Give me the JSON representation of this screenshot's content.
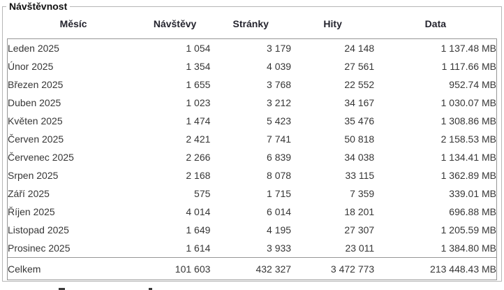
{
  "section": {
    "title": "Návštěvnost"
  },
  "chart_data": {
    "type": "table",
    "title": "Návštěvnost",
    "columns": [
      "Měsíc",
      "Návštěvy",
      "Stránky",
      "Hity",
      "Data"
    ],
    "rows": [
      [
        "Leden 2025",
        "1 054",
        "3 179",
        "24 148",
        "1 137.48 MB"
      ],
      [
        "Únor 2025",
        "1 354",
        "4 039",
        "27 561",
        "1 117.66 MB"
      ],
      [
        "Březen 2025",
        "1 655",
        "3 768",
        "22 552",
        "952.74 MB"
      ],
      [
        "Duben 2025",
        "1 023",
        "3 212",
        "34 167",
        "1 030.07 MB"
      ],
      [
        "Květen 2025",
        "1 474",
        "5 423",
        "35 476",
        "1 308.86 MB"
      ],
      [
        "Červen 2025",
        "2 421",
        "7 741",
        "50 818",
        "2 158.53 MB"
      ],
      [
        "Červenec 2025",
        "2 266",
        "6 839",
        "34 038",
        "1 134.41 MB"
      ],
      [
        "Srpen 2025",
        "2 168",
        "8 078",
        "33 115",
        "1 362.89 MB"
      ],
      [
        "Září 2025",
        "575",
        "1 715",
        "7 359",
        "339.01 MB"
      ],
      [
        "Říjen 2025",
        "4 014",
        "6 014",
        "18 201",
        "696.88 MB"
      ],
      [
        "Listopad 2025",
        "1 649",
        "4 195",
        "27 307",
        "1 205.59 MB"
      ],
      [
        "Prosinec 2025",
        "1 614",
        "3 933",
        "23 011",
        "1 384.80 MB"
      ]
    ],
    "total_row": [
      "Celkem",
      "101 603",
      "432 327",
      "3 472 773",
      "213 448.43 MB"
    ]
  }
}
